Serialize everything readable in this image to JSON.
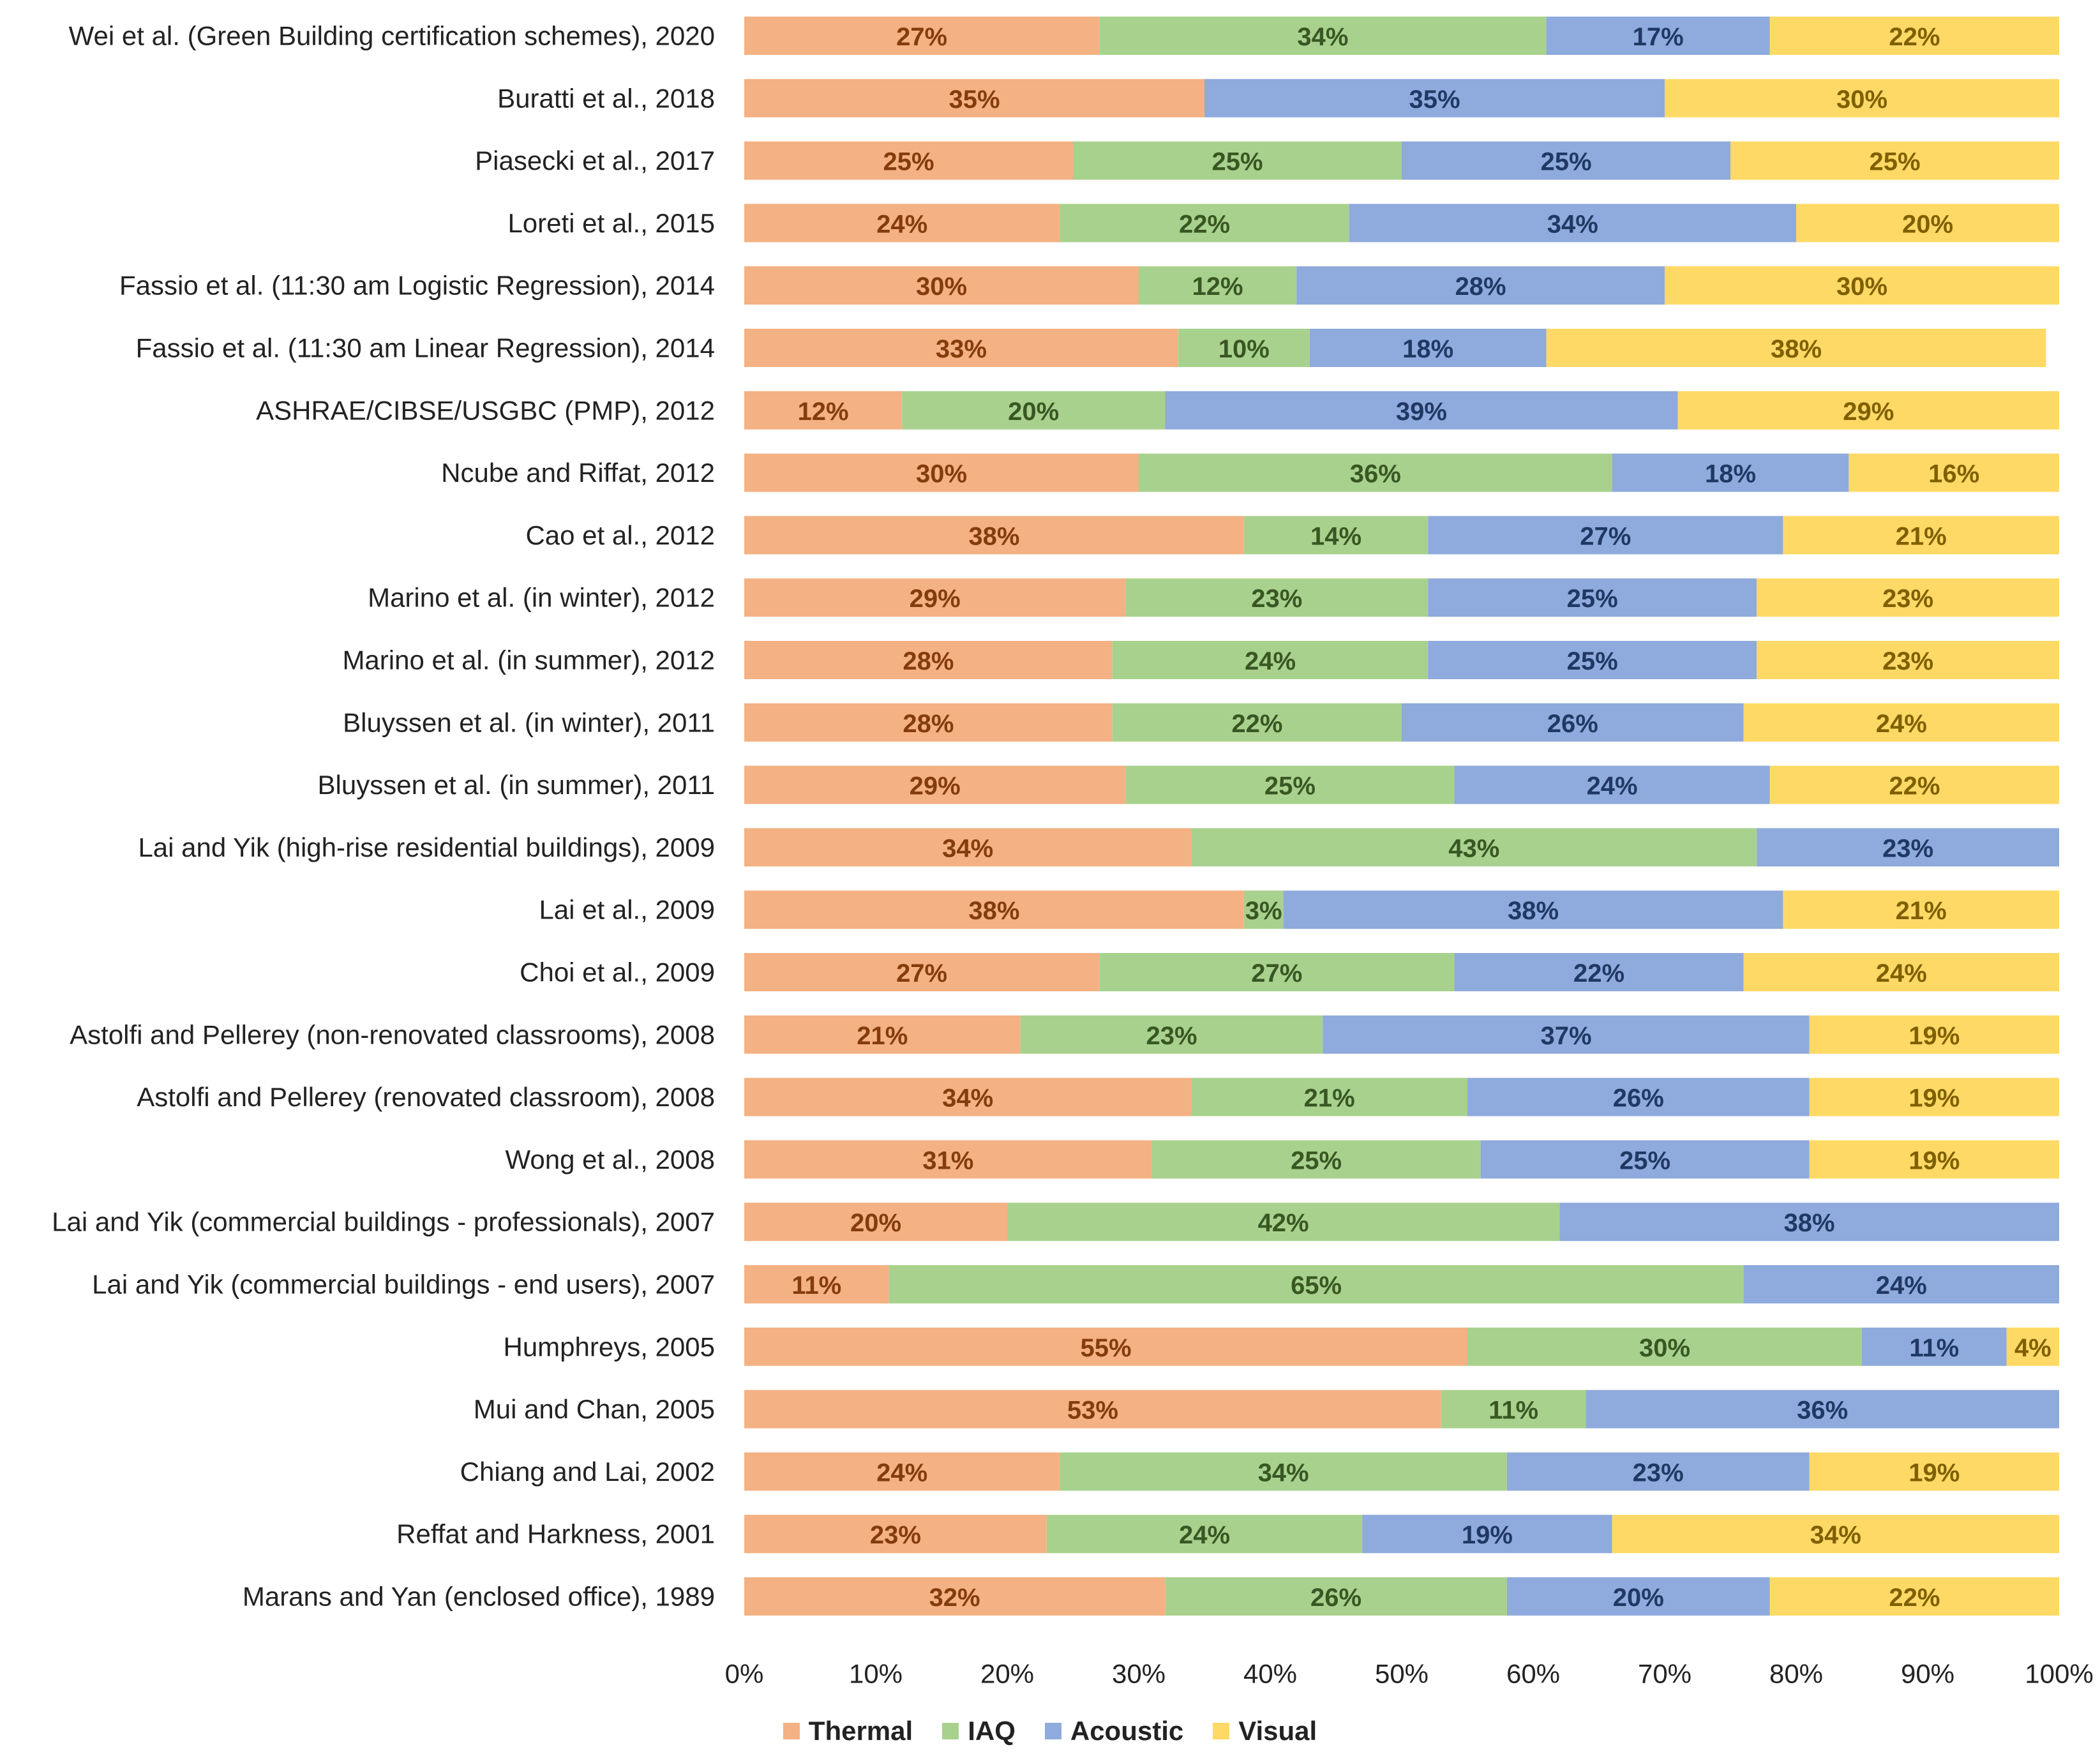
{
  "chart_data": {
    "type": "bar",
    "orientation": "horizontal",
    "stacked": true,
    "title": "",
    "xlabel": "",
    "ylabel": "",
    "xlim": [
      0,
      100
    ],
    "x_ticks": [
      "0%",
      "10%",
      "20%",
      "30%",
      "40%",
      "50%",
      "60%",
      "70%",
      "80%",
      "90%",
      "100%"
    ],
    "legend_position": "bottom",
    "categories": [
      "Wei et al. (Green Building certification schemes), 2020",
      "Buratti et al., 2018",
      "Piasecki et al., 2017",
      "Loreti et al., 2015",
      "Fassio et al. (11:30 am Logistic Regression), 2014",
      "Fassio et al. (11:30 am Linear Regression), 2014",
      "ASHRAE/CIBSE/USGBC (PMP), 2012",
      "Ncube and Riffat, 2012",
      "Cao et al., 2012",
      "Marino et al. (in winter), 2012",
      "Marino et al. (in summer), 2012",
      "Bluyssen et al. (in winter), 2011",
      "Bluyssen et al. (in summer), 2011",
      "Lai and Yik (high-rise residential buildings), 2009",
      "Lai et al., 2009",
      "Choi et al., 2009",
      "Astolfi and Pellerey (non-renovated classrooms), 2008",
      "Astolfi and Pellerey (renovated classroom), 2008",
      "Wong et al., 2008",
      "Lai and Yik (commercial buildings - professionals), 2007",
      "Lai and Yik (commercial buildings - end users), 2007",
      "Humphreys, 2005",
      "Mui and Chan, 2005",
      "Chiang and Lai, 2002",
      "Reffat and Harkness, 2001",
      "Marans and Yan (enclosed office), 1989"
    ],
    "series": [
      {
        "name": "Thermal",
        "color": "#F4B183",
        "label_color": "#843C0C",
        "values": [
          27,
          35,
          25,
          24,
          30,
          33,
          12,
          30,
          38,
          29,
          28,
          28,
          29,
          34,
          38,
          27,
          21,
          34,
          31,
          20,
          11,
          55,
          53,
          24,
          23,
          32
        ]
      },
      {
        "name": "IAQ",
        "color": "#A9D18E",
        "label_color": "#385723",
        "values": [
          34,
          0,
          25,
          22,
          12,
          10,
          20,
          36,
          14,
          23,
          24,
          22,
          25,
          43,
          3,
          27,
          23,
          21,
          25,
          42,
          65,
          30,
          11,
          34,
          24,
          26
        ]
      },
      {
        "name": "Acoustic",
        "color": "#8FAADC",
        "label_color": "#203864",
        "values": [
          17,
          35,
          25,
          34,
          28,
          18,
          39,
          18,
          27,
          25,
          25,
          26,
          24,
          23,
          38,
          22,
          37,
          26,
          25,
          38,
          24,
          11,
          36,
          23,
          19,
          20
        ]
      },
      {
        "name": "Visual",
        "color": "#FFD966",
        "label_color": "#7F6000",
        "values": [
          22,
          30,
          25,
          20,
          30,
          38,
          29,
          16,
          21,
          23,
          23,
          24,
          22,
          0,
          21,
          24,
          19,
          19,
          19,
          0,
          0,
          4,
          0,
          19,
          34,
          22
        ]
      }
    ],
    "value_suffix": "%"
  }
}
